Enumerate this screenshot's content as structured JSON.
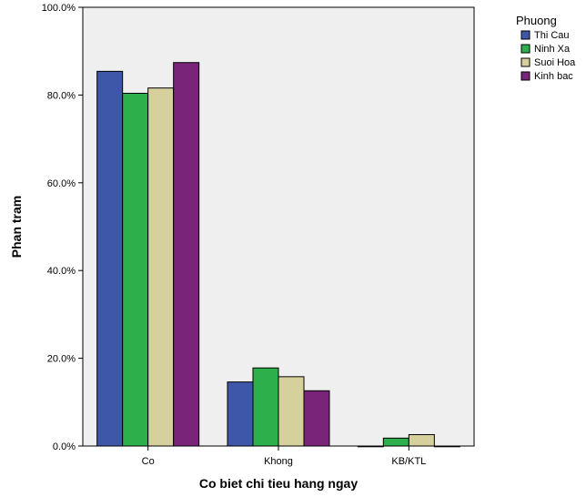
{
  "chart_data": {
    "type": "bar",
    "title": "",
    "xlabel": "Co biet chi tieu hang ngay",
    "ylabel": "Phan tram",
    "categories": [
      "Co",
      "Khong",
      "KB/KTL"
    ],
    "ylim": [
      0,
      100
    ],
    "yticks": [
      0,
      20,
      40,
      60,
      80,
      100
    ],
    "ytick_labels": [
      "0.0%",
      "20.0%",
      "40.0%",
      "60.0%",
      "80.0%",
      "100.0%"
    ],
    "grid": false,
    "legend": {
      "title": "Phuong",
      "position": "top-right-outside"
    },
    "series": [
      {
        "name": "Thi Cau",
        "color": "#3F57A8",
        "values": [
          85.4,
          14.6,
          0.0
        ]
      },
      {
        "name": "Ninh Xa",
        "color": "#2DB04B",
        "values": [
          80.4,
          17.8,
          1.8
        ]
      },
      {
        "name": "Suoi Hoa",
        "color": "#D6D19C",
        "values": [
          81.6,
          15.8,
          2.6
        ]
      },
      {
        "name": "Kinh bac",
        "color": "#7A2479",
        "values": [
          87.4,
          12.6,
          0.0
        ]
      }
    ],
    "plot_background": "#EFEFEF"
  }
}
